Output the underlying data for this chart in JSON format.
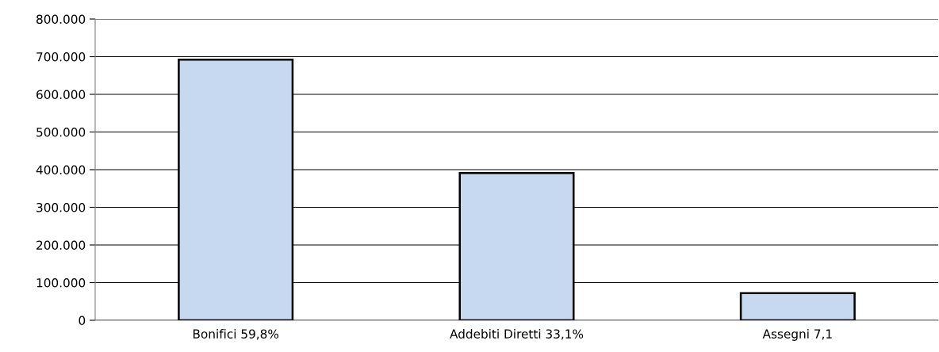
{
  "chart_data": {
    "type": "bar",
    "categories": [
      "Bonifici 59,8%",
      "Addebiti Diretti 33,1%",
      "Assegni 7,1"
    ],
    "values": [
      692000,
      391000,
      72000
    ],
    "color": "#c6d9f0",
    "ylim": [
      0,
      800000
    ],
    "yticks": [
      {
        "value": 0,
        "label": "0"
      },
      {
        "value": 100000,
        "label": "100.000"
      },
      {
        "value": 200000,
        "label": "200.000"
      },
      {
        "value": 300000,
        "label": "300.000"
      },
      {
        "value": 400000,
        "label": "400.000"
      },
      {
        "value": 500000,
        "label": "500.000"
      },
      {
        "value": 600000,
        "label": "600.000"
      },
      {
        "value": 700000,
        "label": "700.000"
      },
      {
        "value": 800000,
        "label": "800.000"
      }
    ],
    "grid": "y",
    "legend": false
  }
}
